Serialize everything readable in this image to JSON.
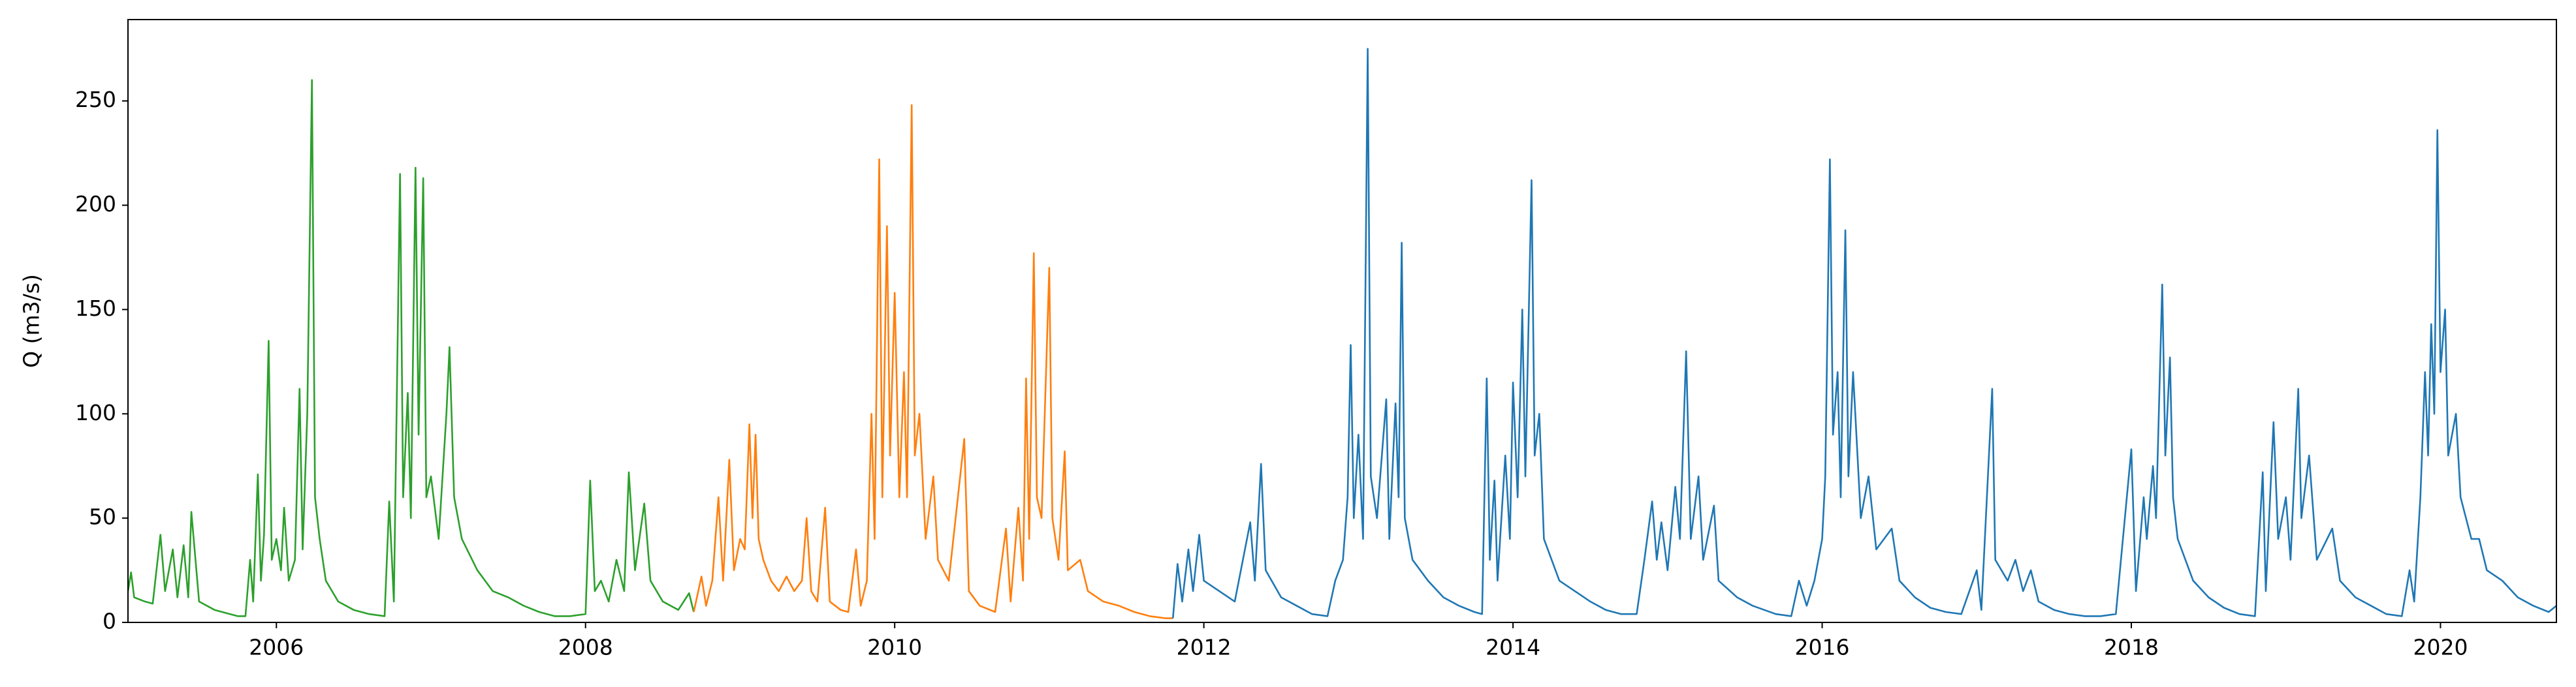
{
  "chart_data": {
    "type": "line",
    "ylabel": "Q (m3/s)",
    "xlim": [
      2005.04,
      2020.75
    ],
    "ylim": [
      0,
      289
    ],
    "xticks": [
      2006,
      2008,
      2010,
      2012,
      2014,
      2016,
      2018,
      2020
    ],
    "yticks": [
      0,
      50,
      100,
      150,
      200,
      250
    ],
    "grid": false,
    "series": [
      {
        "color": "#2ca02c",
        "x": [
          2005.04,
          2005.06,
          2005.08,
          2005.15,
          2005.2,
          2005.25,
          2005.28,
          2005.33,
          2005.36,
          2005.4,
          2005.43,
          2005.45,
          2005.5,
          2005.6,
          2005.7,
          2005.75,
          2005.8,
          2005.83,
          2005.85,
          2005.88,
          2005.9,
          2005.92,
          2005.95,
          2005.97,
          2006.0,
          2006.03,
          2006.05,
          2006.08,
          2006.12,
          2006.15,
          2006.17,
          2006.2,
          2006.23,
          2006.25,
          2006.28,
          2006.32,
          2006.4,
          2006.5,
          2006.6,
          2006.7,
          2006.73,
          2006.76,
          2006.8,
          2006.82,
          2006.85,
          2006.87,
          2006.9,
          2006.92,
          2006.95,
          2006.97,
          2007.0,
          2007.05,
          2007.1,
          2007.12,
          2007.15,
          2007.2,
          2007.3,
          2007.4,
          2007.5,
          2007.6,
          2007.7,
          2007.8,
          2007.9,
          2008.0,
          2008.03,
          2008.06,
          2008.1,
          2008.15,
          2008.2,
          2008.25,
          2008.28,
          2008.32,
          2008.38,
          2008.42,
          2008.5,
          2008.6,
          2008.67,
          2008.7
        ],
        "values": [
          15,
          24,
          12,
          10,
          9,
          42,
          15,
          35,
          12,
          37,
          12,
          53,
          10,
          6,
          4,
          3,
          3,
          30,
          10,
          71,
          20,
          42,
          135,
          30,
          40,
          25,
          55,
          20,
          30,
          112,
          35,
          100,
          260,
          60,
          40,
          20,
          10,
          6,
          4,
          3,
          58,
          10,
          215,
          60,
          110,
          50,
          218,
          90,
          213,
          60,
          70,
          40,
          100,
          132,
          60,
          40,
          25,
          15,
          12,
          8,
          5,
          3,
          3,
          4,
          68,
          15,
          20,
          10,
          30,
          15,
          72,
          25,
          57,
          20,
          10,
          6,
          14,
          5
        ]
      },
      {
        "color": "#ff7f0e",
        "x": [
          2008.7,
          2008.75,
          2008.78,
          2008.82,
          2008.86,
          2008.89,
          2008.93,
          2008.96,
          2009.0,
          2009.03,
          2009.06,
          2009.08,
          2009.1,
          2009.12,
          2009.15,
          2009.2,
          2009.25,
          2009.3,
          2009.35,
          2009.4,
          2009.43,
          2009.46,
          2009.5,
          2009.55,
          2009.58,
          2009.65,
          2009.7,
          2009.75,
          2009.78,
          2009.82,
          2009.85,
          2009.87,
          2009.9,
          2009.92,
          2009.95,
          2009.97,
          2010.0,
          2010.03,
          2010.06,
          2010.08,
          2010.11,
          2010.13,
          2010.16,
          2010.2,
          2010.25,
          2010.28,
          2010.35,
          2010.45,
          2010.48,
          2010.55,
          2010.65,
          2010.72,
          2010.75,
          2010.8,
          2010.83,
          2010.85,
          2010.87,
          2010.9,
          2010.92,
          2010.95,
          2011.0,
          2011.02,
          2011.06,
          2011.1,
          2011.12,
          2011.2,
          2011.25,
          2011.35,
          2011.45,
          2011.55,
          2011.65,
          2011.75,
          2011.8
        ],
        "values": [
          5,
          22,
          8,
          20,
          60,
          20,
          78,
          25,
          40,
          35,
          95,
          50,
          90,
          40,
          30,
          20,
          15,
          22,
          15,
          20,
          50,
          15,
          10,
          55,
          10,
          6,
          5,
          35,
          8,
          20,
          100,
          40,
          222,
          60,
          190,
          80,
          158,
          60,
          120,
          60,
          248,
          80,
          100,
          40,
          70,
          30,
          20,
          88,
          15,
          8,
          5,
          45,
          10,
          55,
          20,
          117,
          40,
          177,
          60,
          50,
          170,
          50,
          30,
          82,
          25,
          30,
          15,
          10,
          8,
          5,
          3,
          2,
          2
        ]
      },
      {
        "color": "#1f77b4",
        "x": [
          2011.8,
          2011.83,
          2011.86,
          2011.9,
          2011.93,
          2011.97,
          2012.0,
          2012.1,
          2012.2,
          2012.3,
          2012.33,
          2012.37,
          2012.4,
          2012.5,
          2012.6,
          2012.7,
          2012.8,
          2012.85,
          2012.9,
          2012.93,
          2012.95,
          2012.97,
          2013.0,
          2013.03,
          2013.06,
          2013.08,
          2013.12,
          2013.18,
          2013.2,
          2013.24,
          2013.26,
          2013.28,
          2013.3,
          2013.35,
          2013.45,
          2013.55,
          2013.65,
          2013.75,
          2013.8,
          2013.83,
          2013.85,
          2013.88,
          2013.9,
          2013.95,
          2013.98,
          2014.0,
          2014.03,
          2014.06,
          2014.08,
          2014.12,
          2014.14,
          2014.17,
          2014.2,
          2014.3,
          2014.4,
          2014.5,
          2014.6,
          2014.7,
          2014.8,
          2014.85,
          2014.9,
          2014.93,
          2014.96,
          2015.0,
          2015.05,
          2015.08,
          2015.12,
          2015.15,
          2015.2,
          2015.23,
          2015.3,
          2015.33,
          2015.45,
          2015.55,
          2015.7,
          2015.8,
          2015.85,
          2015.9,
          2015.95,
          2016.0,
          2016.02,
          2016.05,
          2016.07,
          2016.1,
          2016.12,
          2016.15,
          2016.17,
          2016.2,
          2016.25,
          2016.3,
          2016.35,
          2016.45,
          2016.5,
          2016.6,
          2016.7,
          2016.8,
          2016.9,
          2017.0,
          2017.03,
          2017.1,
          2017.12,
          2017.2,
          2017.25,
          2017.3,
          2017.35,
          2017.4,
          2017.5,
          2017.6,
          2017.7,
          2017.8,
          2017.9,
          2018.0,
          2018.03,
          2018.08,
          2018.1,
          2018.14,
          2018.16,
          2018.2,
          2018.22,
          2018.25,
          2018.27,
          2018.3,
          2018.4,
          2018.5,
          2018.6,
          2018.7,
          2018.8,
          2018.85,
          2018.87,
          2018.92,
          2018.95,
          2019.0,
          2019.03,
          2019.08,
          2019.1,
          2019.15,
          2019.2,
          2019.3,
          2019.35,
          2019.45,
          2019.55,
          2019.65,
          2019.75,
          2019.8,
          2019.83,
          2019.87,
          2019.9,
          2019.92,
          2019.94,
          2019.96,
          2019.98,
          2020.0,
          2020.03,
          2020.05,
          2020.1,
          2020.13,
          2020.2,
          2020.25,
          2020.3,
          2020.4,
          2020.5,
          2020.6,
          2020.7,
          2020.75
        ],
        "values": [
          2,
          28,
          10,
          35,
          15,
          42,
          20,
          15,
          10,
          48,
          20,
          76,
          25,
          12,
          8,
          4,
          3,
          20,
          30,
          60,
          133,
          50,
          90,
          40,
          275,
          70,
          50,
          107,
          40,
          105,
          60,
          182,
          50,
          30,
          20,
          12,
          8,
          5,
          4,
          117,
          30,
          68,
          20,
          80,
          40,
          115,
          60,
          150,
          70,
          212,
          80,
          100,
          40,
          20,
          15,
          10,
          6,
          4,
          4,
          30,
          58,
          30,
          48,
          25,
          65,
          40,
          130,
          40,
          70,
          30,
          56,
          20,
          12,
          8,
          4,
          3,
          20,
          8,
          20,
          40,
          70,
          222,
          90,
          120,
          60,
          188,
          70,
          120,
          50,
          70,
          35,
          45,
          20,
          12,
          7,
          5,
          4,
          25,
          6,
          112,
          30,
          20,
          30,
          15,
          25,
          10,
          6,
          4,
          3,
          3,
          4,
          83,
          15,
          60,
          40,
          75,
          50,
          162,
          80,
          127,
          60,
          40,
          20,
          12,
          7,
          4,
          3,
          72,
          15,
          96,
          40,
          60,
          30,
          112,
          50,
          80,
          30,
          45,
          20,
          12,
          8,
          4,
          3,
          25,
          10,
          60,
          120,
          80,
          143,
          100,
          236,
          120,
          150,
          80,
          100,
          60,
          40,
          40,
          25,
          20,
          12,
          8,
          5,
          8
        ]
      }
    ]
  }
}
